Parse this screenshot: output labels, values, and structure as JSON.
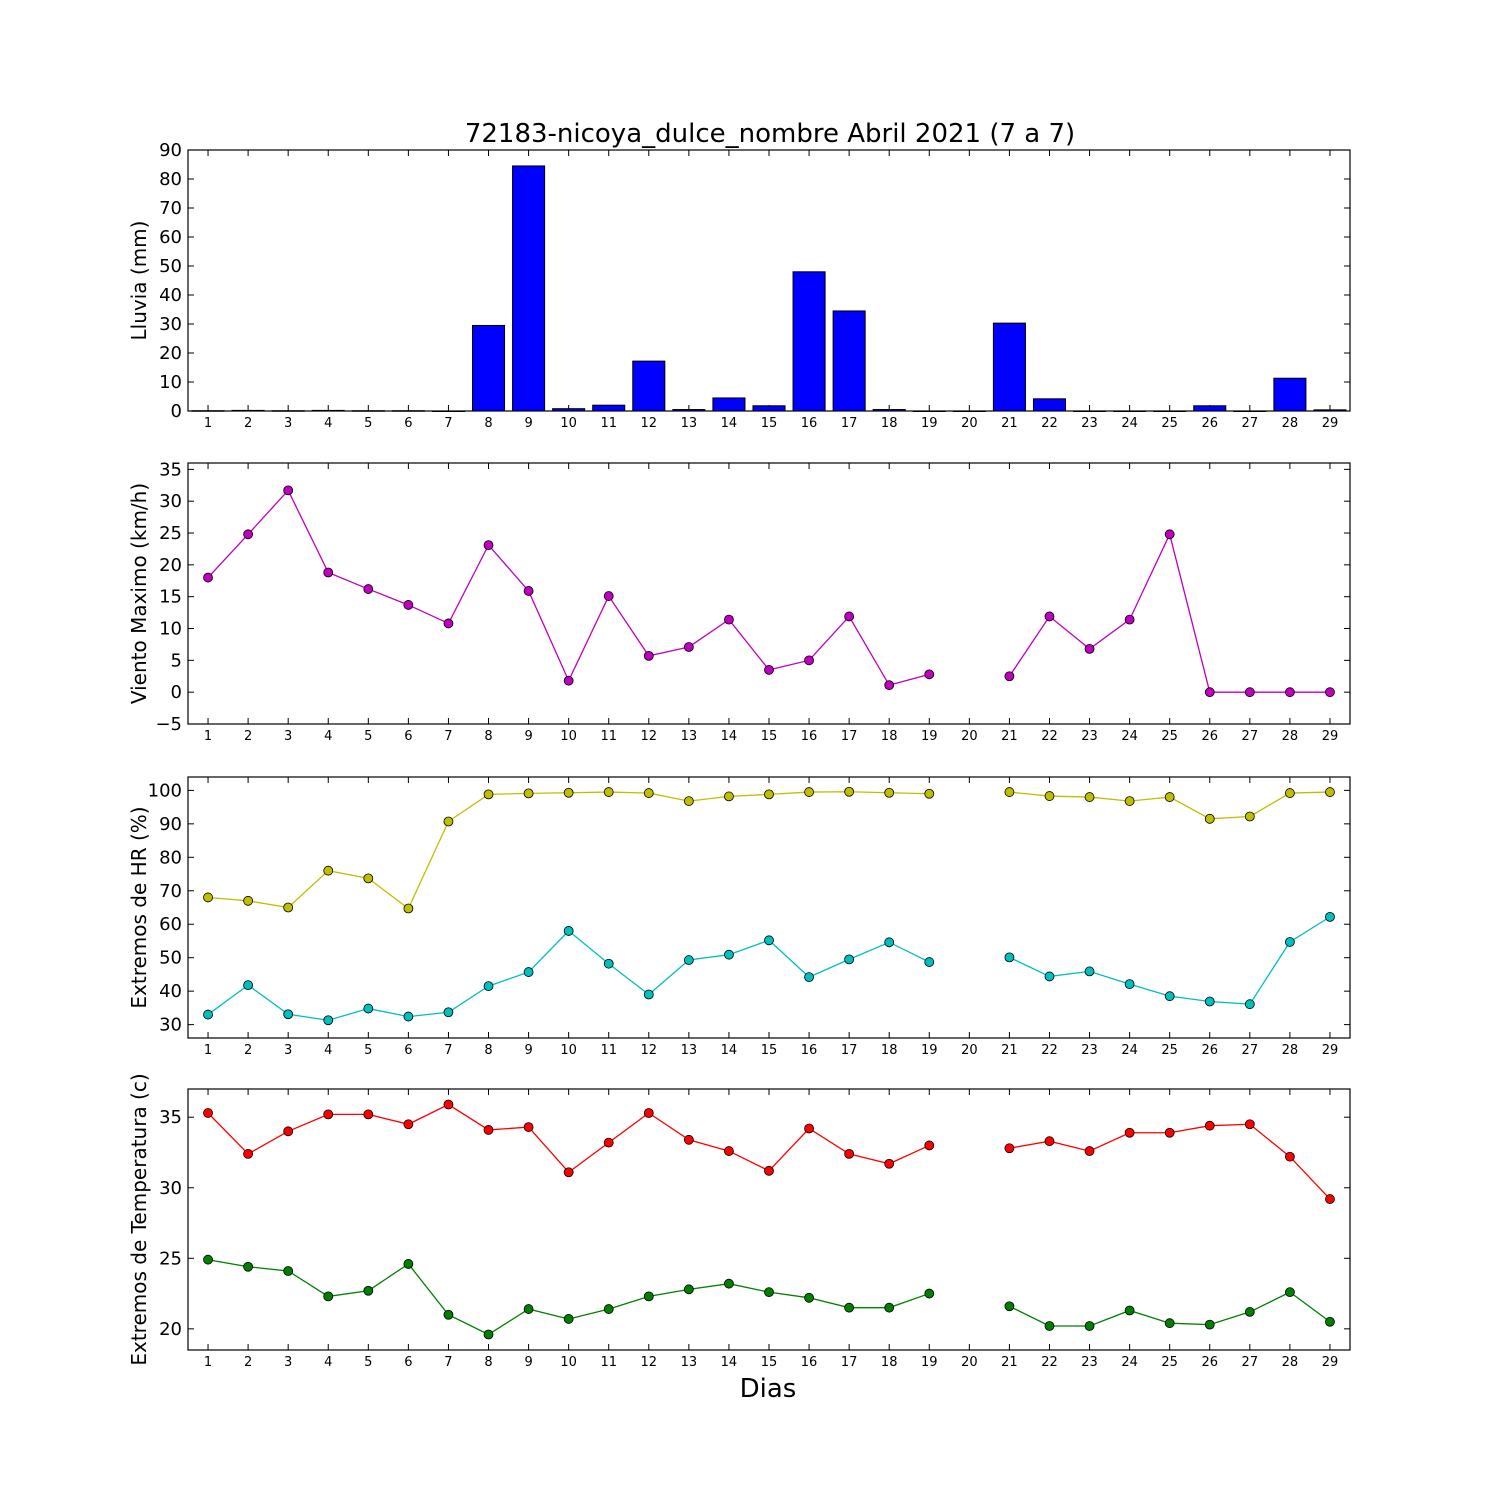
{
  "chart_data": {
    "title": "72183-nicoya_dulce_nombre Abril 2021  (7 a 7)",
    "xlabel": "Dias",
    "days": [
      1,
      2,
      3,
      4,
      5,
      6,
      7,
      8,
      9,
      10,
      11,
      12,
      13,
      14,
      15,
      16,
      17,
      18,
      19,
      20,
      21,
      22,
      23,
      24,
      25,
      26,
      27,
      28,
      29
    ],
    "panels": [
      {
        "type": "bar",
        "ylabel": "Lluvia (mm)",
        "ylim": [
          0,
          90
        ],
        "yticks": [
          0,
          10,
          20,
          30,
          40,
          50,
          60,
          70,
          80,
          90
        ],
        "series": [
          {
            "color": "#0000ff",
            "values": [
              0.1,
              0.2,
              0.1,
              0.2,
              0.1,
              0.1,
              0,
              29.5,
              84.5,
              0.8,
              2,
              17.2,
              0.5,
              4.5,
              1.8,
              48,
              34.5,
              0.5,
              0,
              0,
              30.3,
              4.2,
              0,
              0,
              0,
              1.8,
              0,
              11.3,
              0.4
            ]
          }
        ]
      },
      {
        "type": "line",
        "ylabel": "Viento Maximo (km/h)",
        "ylim": [
          -5,
          36
        ],
        "yticks": [
          -5,
          0,
          5,
          10,
          15,
          20,
          25,
          30,
          35
        ],
        "series": [
          {
            "color": "#bf00bf",
            "values": [
              18,
              24.8,
              31.7,
              18.8,
              16.2,
              13.7,
              10.8,
              23.1,
              15.9,
              1.8,
              15.1,
              5.7,
              7.1,
              11.4,
              3.5,
              5,
              11.9,
              1.1,
              2.8,
              null,
              2.5,
              11.9,
              6.8,
              11.4,
              24.8,
              0,
              0,
              0,
              0
            ]
          }
        ]
      },
      {
        "type": "line",
        "ylabel": "Extremos de HR (%)",
        "ylim": [
          26,
          104
        ],
        "yticks": [
          30,
          40,
          50,
          60,
          70,
          80,
          90,
          100
        ],
        "series": [
          {
            "color": "#bfbf00",
            "values": [
              68,
              67,
              65,
              76,
              73.7,
              64.7,
              90.7,
              98.8,
              99.1,
              99.3,
              99.5,
              99.2,
              96.8,
              98.2,
              98.8,
              99.5,
              99.6,
              99.3,
              99,
              null,
              99.5,
              98.3,
              98,
              96.8,
              98,
              91.5,
              92.2,
              99.2,
              99.5
            ]
          },
          {
            "color": "#00bfbf",
            "values": [
              33,
              41.8,
              33.1,
              31.3,
              34.8,
              32.4,
              33.7,
              41.5,
              45.7,
              58,
              48.2,
              39,
              49.3,
              50.9,
              55.2,
              44.2,
              49.5,
              54.6,
              48.7,
              null,
              50.1,
              44.4,
              45.9,
              42.1,
              38.5,
              36.9,
              36.1,
              54.7,
              62.2
            ]
          }
        ]
      },
      {
        "type": "line",
        "ylabel": "Extremos de Temperatura (c)",
        "ylim": [
          18.5,
          37
        ],
        "yticks": [
          20,
          25,
          30,
          35
        ],
        "series": [
          {
            "color": "#ff0000",
            "values": [
              35.3,
              32.4,
              34,
              35.2,
              35.2,
              34.5,
              35.9,
              34.1,
              34.3,
              31.1,
              33.2,
              35.3,
              33.4,
              32.6,
              31.2,
              34.2,
              32.4,
              31.7,
              33,
              null,
              32.8,
              33.3,
              32.6,
              33.9,
              33.9,
              34.4,
              34.5,
              32.2,
              29.2
            ]
          },
          {
            "color": "#007f00",
            "values": [
              24.9,
              24.4,
              24.1,
              22.3,
              22.7,
              24.6,
              21,
              19.6,
              21.4,
              20.7,
              21.4,
              22.3,
              22.8,
              23.2,
              22.6,
              22.2,
              21.5,
              21.5,
              22.5,
              null,
              21.6,
              20.2,
              20.2,
              21.3,
              20.4,
              20.3,
              21.2,
              22.6,
              20.5
            ]
          }
        ]
      }
    ]
  }
}
